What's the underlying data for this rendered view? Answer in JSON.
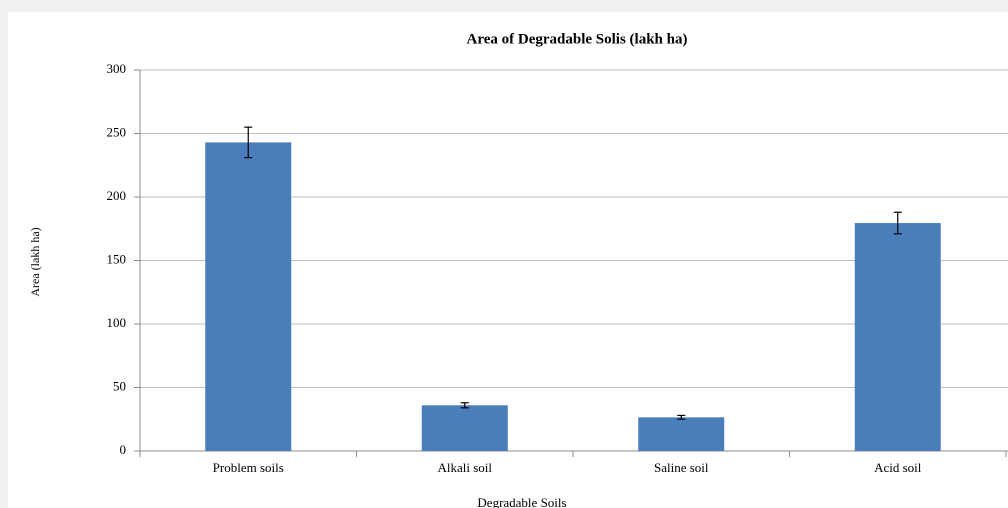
{
  "chart_data": {
    "type": "bar",
    "title": "Area of Degradable Solis (lakh ha)",
    "x_label": "Degradable Soils",
    "y_label": "Area (lakh ha)",
    "categories": [
      "Problem soils",
      "Alkali soil",
      "Saline soil",
      "Acid soil"
    ],
    "values": [
      243,
      36,
      26.5,
      179.5
    ],
    "errors": [
      12,
      2,
      1.5,
      8.5
    ],
    "color": "#4a7ebb",
    "ylim": [
      0,
      300
    ],
    "yticks": [
      0,
      50,
      100,
      150,
      200,
      250,
      300
    ],
    "grid": true
  }
}
